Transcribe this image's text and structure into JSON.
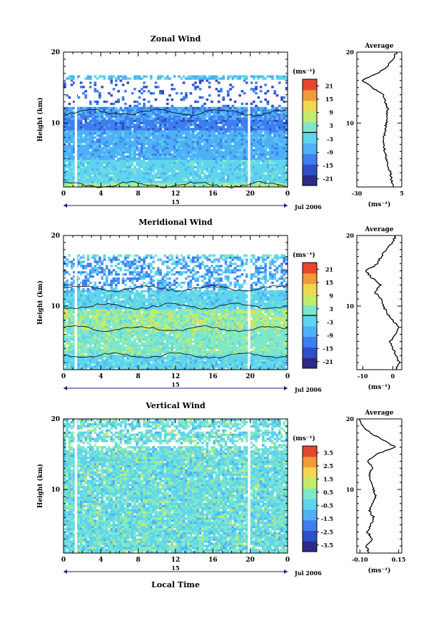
{
  "chart_data": [
    {
      "type": "heatmap",
      "title": "Zonal Wind",
      "ylabel": "Height (km)",
      "unit": "(ms⁻¹)",
      "y_ticks": [
        "20",
        "10"
      ],
      "x_ticks": [
        "0",
        "4",
        "8",
        "12",
        "16",
        "20",
        "0"
      ],
      "date_tick": "15",
      "date_label": "Jul 2006",
      "ylim": [
        1,
        20
      ],
      "xlim": [
        0,
        24
      ],
      "colorbar": {
        "range": [
          -24,
          24
        ],
        "tick_labels": [
          "21",
          "15",
          "9",
          "3",
          "-3",
          "-9",
          "-15",
          "-21"
        ],
        "zero_contour": true
      },
      "profile": {
        "title": "Average",
        "x_ticks": [
          "-30",
          "5"
        ],
        "y_ticks": [
          "20",
          "10"
        ],
        "xlim": [
          -30,
          5
        ],
        "xlabel": "(ms⁻¹)",
        "height": [
          1,
          2,
          3,
          4,
          5,
          6,
          7,
          8,
          9,
          10,
          11,
          12,
          13,
          14,
          15,
          16,
          17,
          18,
          19,
          20
        ],
        "value": [
          -1,
          -3,
          -4,
          -6,
          -7,
          -8,
          -9,
          -9,
          -8,
          -7,
          -7,
          -6,
          -8,
          -9,
          -18,
          -26,
          -14,
          -6,
          -2,
          1
        ]
      }
    },
    {
      "type": "heatmap",
      "title": "Meridional Wind",
      "ylabel": "Height (km)",
      "unit": "(ms⁻¹)",
      "y_ticks": [
        "20",
        "10"
      ],
      "x_ticks": [
        "0",
        "4",
        "8",
        "12",
        "16",
        "20",
        "0"
      ],
      "date_tick": "15",
      "date_label": "Jul 2006",
      "ylim": [
        1,
        20
      ],
      "xlim": [
        0,
        24
      ],
      "colorbar": {
        "range": [
          -24,
          24
        ],
        "tick_labels": [
          "21",
          "15",
          "9",
          "3",
          "-3",
          "-9",
          "-15",
          "-21"
        ],
        "zero_contour": true
      },
      "profile": {
        "title": "Average",
        "x_ticks": [
          "-10",
          "0"
        ],
        "y_ticks": [
          "20",
          "10"
        ],
        "xlim": [
          -12,
          3
        ],
        "xlabel": "(ms⁻¹)",
        "height": [
          1,
          2,
          3,
          4,
          5,
          6,
          7,
          8,
          9,
          10,
          11,
          12,
          13,
          14,
          15,
          16,
          17,
          18,
          19,
          20
        ],
        "value": [
          1,
          2,
          1,
          0,
          -1,
          1,
          2,
          0,
          -2,
          -3,
          -4,
          -6,
          -4,
          -7,
          -9,
          -5,
          -4,
          -2,
          0,
          1
        ]
      }
    },
    {
      "type": "heatmap",
      "title": "Vertical Wind",
      "ylabel": "Height (km)",
      "xlabel": "Local Time",
      "unit": "(ms⁻¹)",
      "y_ticks": [
        "20",
        "10"
      ],
      "x_ticks": [
        "0",
        "4",
        "8",
        "12",
        "16",
        "20",
        "0"
      ],
      "date_tick": "15",
      "date_label": "Jul 2006",
      "ylim": [
        1,
        20
      ],
      "xlim": [
        0,
        24
      ],
      "colorbar": {
        "range": [
          -4,
          4
        ],
        "tick_labels": [
          "3.5",
          "2.5",
          "1.5",
          "0.5",
          "-0.5",
          "-1.5",
          "-2.5",
          "-3.5"
        ],
        "zero_contour": false
      },
      "profile": {
        "title": "Average",
        "x_ticks": [
          "-0.10",
          "0.15"
        ],
        "y_ticks": [
          "20",
          "10"
        ],
        "xlim": [
          -0.12,
          0.17
        ],
        "xlabel": "(ms⁻¹)",
        "height": [
          1,
          2,
          3,
          4,
          5,
          6,
          7,
          8,
          9,
          10,
          11,
          12,
          13,
          14,
          15,
          16,
          17,
          18,
          19,
          20
        ],
        "value": [
          -0.04,
          -0.06,
          -0.02,
          -0.05,
          -0.03,
          -0.01,
          -0.04,
          -0.02,
          0.0,
          -0.01,
          -0.03,
          -0.04,
          -0.02,
          -0.05,
          0.01,
          0.13,
          0.05,
          -0.03,
          -0.08,
          -0.1
        ]
      }
    }
  ],
  "colors": {
    "scale": [
      "#2b2a86",
      "#2f4fc8",
      "#3f7ef0",
      "#4fb0f5",
      "#5fd4ee",
      "#7fe8c8",
      "#c4ec6a",
      "#efd94f",
      "#f39a3a",
      "#e8472f"
    ]
  }
}
